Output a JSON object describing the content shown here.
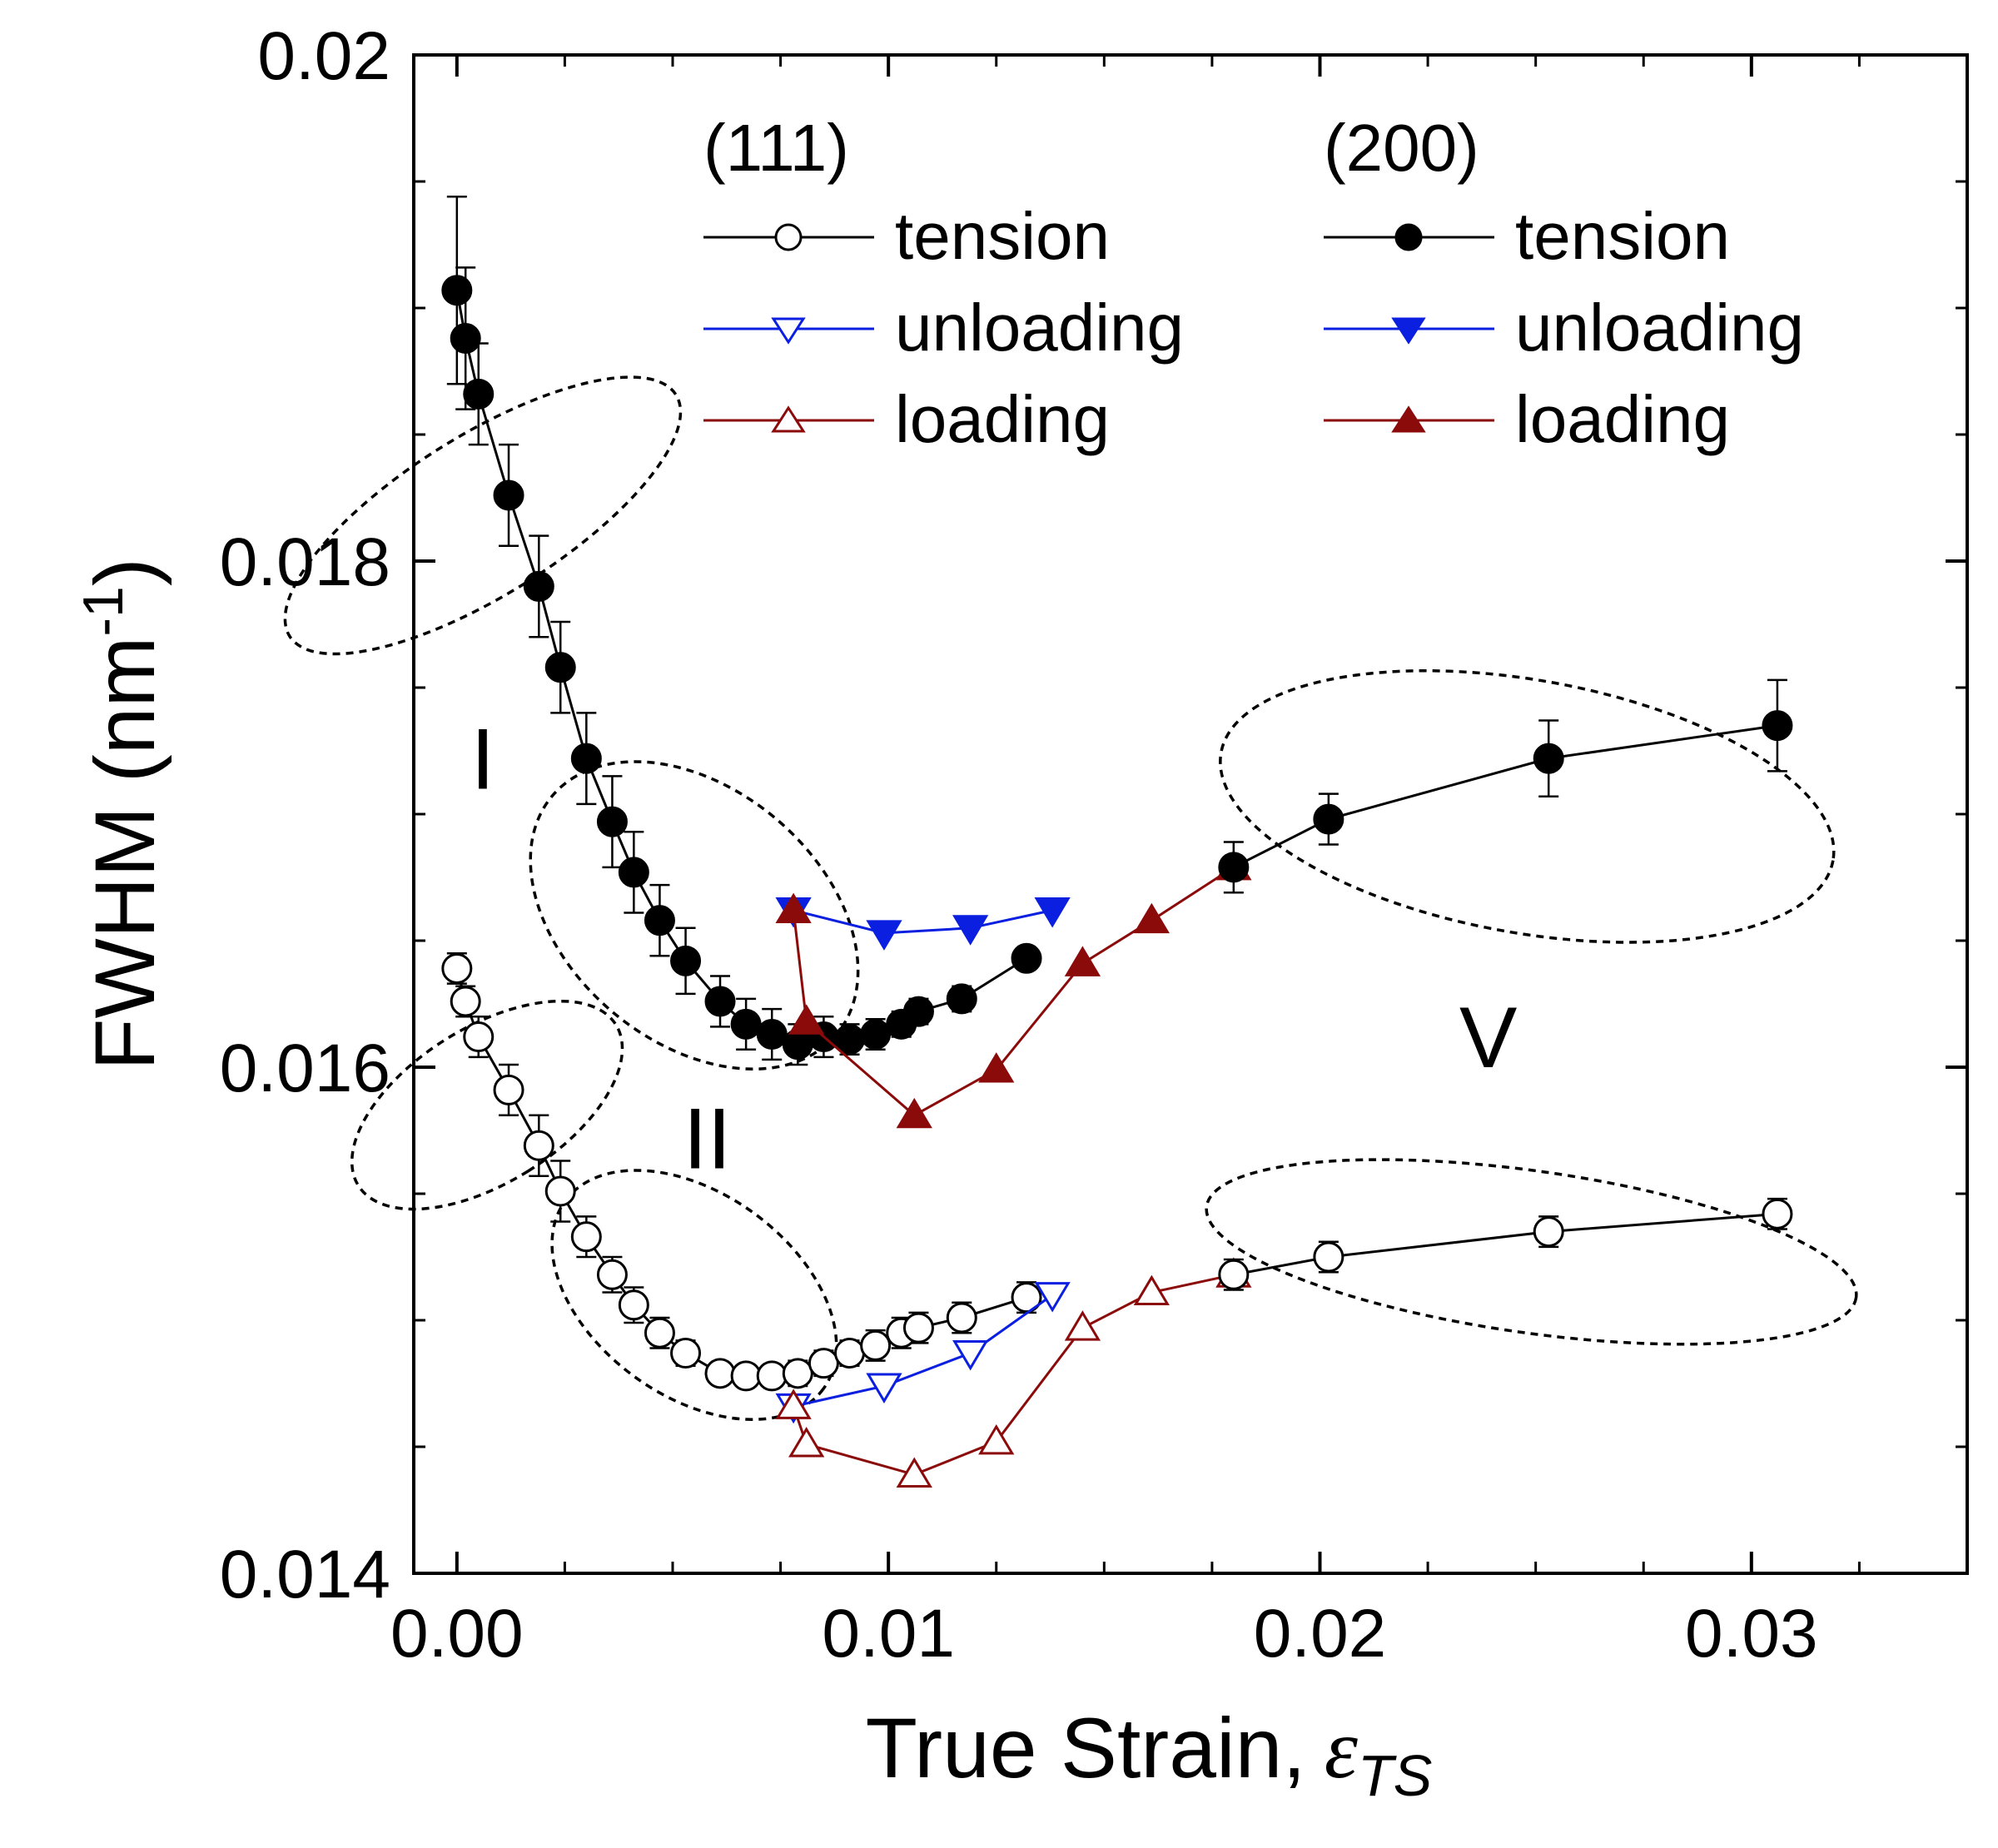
{
  "chart_data": {
    "type": "line",
    "title": "",
    "xlabel": "True Strain,",
    "xlabel_symbol": "ε",
    "xlabel_subscript": "TS",
    "ylabel": "FWHM (nm",
    "ylabel_superscript": "-1",
    "ylabel_close": ")",
    "xlim": [
      -0.001,
      0.035
    ],
    "ylim": [
      0.014,
      0.02
    ],
    "xticks": [
      0.0,
      0.01,
      0.02,
      0.03
    ],
    "xtick_labels": [
      "0.00",
      "0.01",
      "0.02",
      "0.03"
    ],
    "yticks": [
      0.014,
      0.016,
      0.018,
      0.02
    ],
    "ytick_labels": [
      "0.014",
      "0.016",
      "0.018",
      "0.02"
    ],
    "grid": false,
    "legend": {
      "position": "top",
      "group_titles": [
        "(111)",
        "(200)"
      ],
      "labels": [
        "tension",
        "unloading",
        "loading"
      ]
    },
    "colors": {
      "tension": "#000000",
      "unloading": "#0b1fe0",
      "loading": "#8b0a0a",
      "region": "#000000"
    },
    "series": [
      {
        "name": "(111) tension",
        "group": "(111)",
        "label": "tension",
        "marker": "circle",
        "filled": false,
        "color": "#000000",
        "x": [
          0.0,
          0.0002,
          0.0005,
          0.0012,
          0.0019,
          0.0024,
          0.003,
          0.0036,
          0.0041,
          0.0047,
          0.0053,
          0.0061,
          0.0067,
          0.0073,
          0.0079,
          0.0085,
          0.0091,
          0.0097,
          0.0103,
          0.0107,
          0.0117,
          0.0132
        ],
        "y": [
          0.01639,
          0.01626,
          0.01612,
          0.01591,
          0.01569,
          0.01551,
          0.01533,
          0.01518,
          0.01506,
          0.01495,
          0.01487,
          0.01479,
          0.01478,
          0.01478,
          0.01479,
          0.01483,
          0.01487,
          0.0149,
          0.01495,
          0.01497,
          0.01501,
          0.01509
        ],
        "err": [
          6e-05,
          6e-05,
          8e-05,
          0.0001,
          0.00012,
          0.00012,
          8e-05,
          7e-05,
          7e-05,
          6e-05,
          5e-05,
          4e-05,
          4e-05,
          4e-05,
          5e-05,
          5e-05,
          5e-05,
          6e-05,
          6e-05,
          6e-05,
          6e-05,
          6e-05
        ]
      },
      {
        "name": "(111) unloading",
        "group": "(111)",
        "label": "unloading",
        "marker": "triangle-down",
        "filled": false,
        "color": "#0b1fe0",
        "x": [
          0.0138,
          0.0119,
          0.0099,
          0.0078
        ],
        "y": [
          0.0151,
          0.01487,
          0.01474,
          0.01466
        ],
        "err": []
      },
      {
        "name": "(111) loading",
        "group": "(111)",
        "label": "loading",
        "marker": "triangle-up",
        "filled": false,
        "color": "#8b0a0a",
        "x": [
          0.0078,
          0.0081,
          0.0106,
          0.0125,
          0.0145,
          0.0161,
          0.018
        ],
        "y": [
          0.01466,
          0.01451,
          0.01439,
          0.01452,
          0.01497,
          0.01511,
          0.01518
        ],
        "err": []
      },
      {
        "name": "(111) tension large strain",
        "group": "(111)",
        "label": "tension",
        "marker": "circle",
        "filled": false,
        "color": "#000000",
        "x": [
          0.018,
          0.0202,
          0.0253,
          0.0306
        ],
        "y": [
          0.01518,
          0.01525,
          0.01535,
          0.01542
        ],
        "err": [
          6e-05,
          6e-05,
          6e-05,
          6e-05
        ]
      },
      {
        "name": "(200) tension",
        "group": "(200)",
        "label": "tension",
        "marker": "circle",
        "filled": true,
        "color": "#000000",
        "x": [
          0.0,
          0.0002,
          0.0005,
          0.0012,
          0.0019,
          0.0024,
          0.003,
          0.0036,
          0.0041,
          0.0047,
          0.0053,
          0.0061,
          0.0067,
          0.0073,
          0.0079,
          0.0085,
          0.0091,
          0.0097,
          0.0103,
          0.0107,
          0.0117,
          0.0132
        ],
        "y": [
          0.01907,
          0.01888,
          0.01866,
          0.01826,
          0.0179,
          0.01758,
          0.01722,
          0.01697,
          0.01677,
          0.01658,
          0.01642,
          0.01626,
          0.01617,
          0.01613,
          0.01609,
          0.01612,
          0.01611,
          0.01613,
          0.01617,
          0.01622,
          0.01627,
          0.01643
        ],
        "err": [
          0.00037,
          0.00028,
          0.0002,
          0.0002,
          0.0002,
          0.00018,
          0.00018,
          0.00018,
          0.00016,
          0.00014,
          0.00013,
          0.0001,
          0.0001,
          0.0001,
          8e-05,
          8e-05,
          6e-05,
          6e-05,
          5e-05,
          5e-05,
          5e-05,
          4e-05
        ]
      },
      {
        "name": "(200) unloading",
        "group": "(200)",
        "label": "unloading",
        "marker": "triangle-down",
        "filled": true,
        "color": "#0b1fe0",
        "x": [
          0.0138,
          0.0119,
          0.0099,
          0.0078
        ],
        "y": [
          0.01662,
          0.01655,
          0.01653,
          0.01662
        ],
        "err": []
      },
      {
        "name": "(200) loading",
        "group": "(200)",
        "label": "loading",
        "marker": "triangle-up",
        "filled": true,
        "color": "#8b0a0a",
        "x": [
          0.0078,
          0.0081,
          0.0106,
          0.0125,
          0.0145,
          0.0161,
          0.018
        ],
        "y": [
          0.01662,
          0.01618,
          0.01581,
          0.01599,
          0.01641,
          0.01658,
          0.01679
        ],
        "err": []
      },
      {
        "name": "(200) tension large strain",
        "group": "(200)",
        "label": "tension",
        "marker": "circle",
        "filled": true,
        "color": "#000000",
        "x": [
          0.018,
          0.0202,
          0.0253,
          0.0306
        ],
        "y": [
          0.01679,
          0.01698,
          0.01722,
          0.01735
        ],
        "err": [
          0.0001,
          0.0001,
          0.00015,
          0.00018
        ]
      }
    ],
    "regions": [
      {
        "cx": 0.0006,
        "cy": 0.01818,
        "rx": 0.00185,
        "ry": 0.0009,
        "angle": 58
      },
      {
        "cx": 0.0055,
        "cy": 0.0166,
        "rx": 0.0043,
        "ry": 0.0005,
        "angle": 40
      },
      {
        "cx": 0.0248,
        "cy": 0.01703,
        "rx": 0.0072,
        "ry": 0.0005,
        "angle": 10
      },
      {
        "cx": 0.0007,
        "cy": 0.01585,
        "rx": 0.0018,
        "ry": 0.0006,
        "angle": 58
      },
      {
        "cx": 0.0055,
        "cy": 0.0151,
        "rx": 0.0037,
        "ry": 0.0004,
        "angle": 36
      },
      {
        "cx": 0.0249,
        "cy": 0.01527,
        "rx": 0.0076,
        "ry": 0.00032,
        "angle": 8
      }
    ],
    "annotations": [
      {
        "text": "I",
        "x": 0.0006,
        "y": 0.0171
      },
      {
        "text": "II",
        "x": 0.0058,
        "y": 0.0156
      },
      {
        "text": "V",
        "x": 0.0239,
        "y": 0.016
      }
    ]
  }
}
